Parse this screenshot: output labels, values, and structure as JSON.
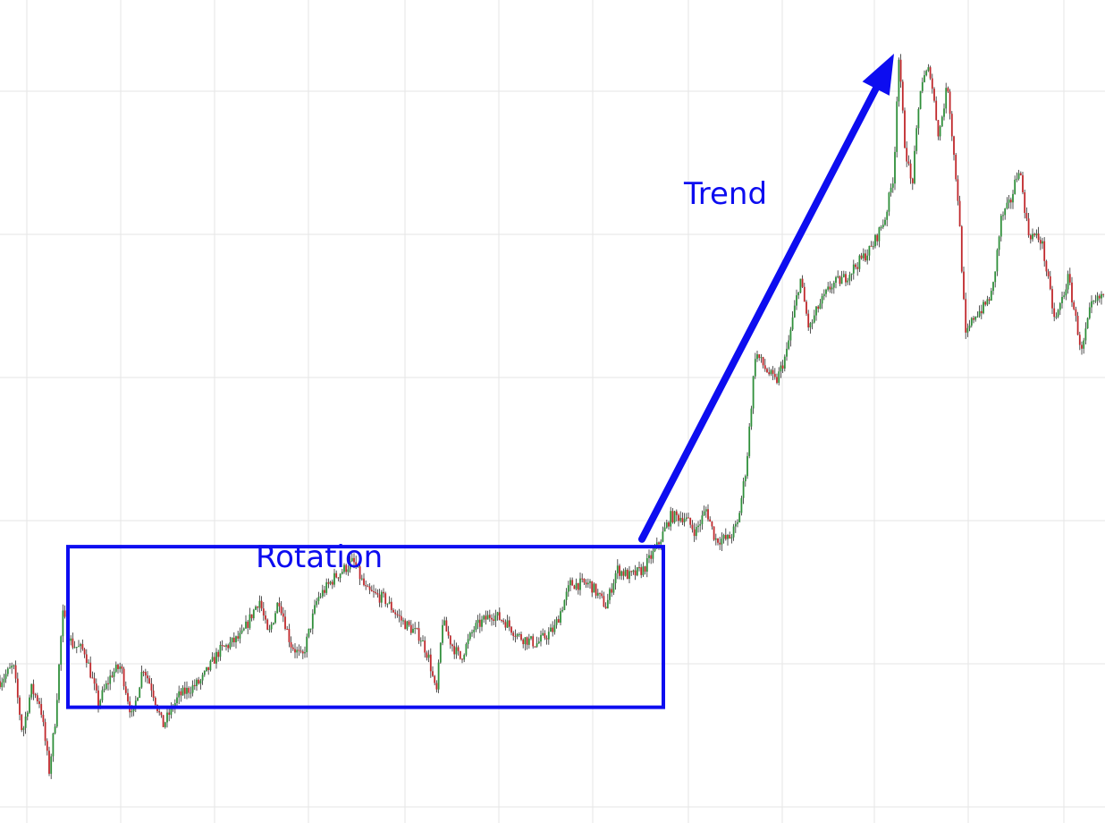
{
  "chart_data": {
    "type": "candlestick",
    "ylim": [
      0,
      100
    ],
    "xlim": [
      0,
      1236
    ],
    "grid": true,
    "colors": {
      "up": "#2f8f3a",
      "down": "#c0282c",
      "annotation": "#0d0df0",
      "grid": "#e6e6e6"
    },
    "price_path": [
      [
        0,
        16
      ],
      [
        15,
        18
      ],
      [
        25,
        9
      ],
      [
        35,
        15
      ],
      [
        45,
        13
      ],
      [
        55,
        4
      ],
      [
        62,
        11
      ],
      [
        70,
        25
      ],
      [
        80,
        21
      ],
      [
        95,
        20
      ],
      [
        110,
        13
      ],
      [
        125,
        17
      ],
      [
        135,
        18
      ],
      [
        148,
        11
      ],
      [
        160,
        18
      ],
      [
        170,
        15
      ],
      [
        182,
        10
      ],
      [
        200,
        14
      ],
      [
        225,
        16
      ],
      [
        245,
        20
      ],
      [
        270,
        22
      ],
      [
        290,
        27
      ],
      [
        300,
        22
      ],
      [
        312,
        27
      ],
      [
        325,
        21
      ],
      [
        338,
        19
      ],
      [
        355,
        27
      ],
      [
        375,
        30
      ],
      [
        395,
        32
      ],
      [
        410,
        28
      ],
      [
        430,
        27
      ],
      [
        450,
        24
      ],
      [
        470,
        22
      ],
      [
        480,
        19
      ],
      [
        488,
        14
      ],
      [
        495,
        24
      ],
      [
        505,
        21
      ],
      [
        515,
        19
      ],
      [
        530,
        23
      ],
      [
        550,
        25
      ],
      [
        565,
        24
      ],
      [
        580,
        22
      ],
      [
        600,
        21
      ],
      [
        620,
        23
      ],
      [
        638,
        29
      ],
      [
        660,
        29
      ],
      [
        678,
        26
      ],
      [
        690,
        31
      ],
      [
        705,
        30
      ],
      [
        720,
        31
      ],
      [
        735,
        34
      ],
      [
        750,
        38
      ],
      [
        765,
        38
      ],
      [
        778,
        36
      ],
      [
        790,
        39
      ],
      [
        800,
        35
      ],
      [
        815,
        35
      ],
      [
        825,
        37
      ],
      [
        835,
        45
      ],
      [
        845,
        60
      ],
      [
        855,
        58
      ],
      [
        868,
        56
      ],
      [
        880,
        60
      ],
      [
        895,
        70
      ],
      [
        905,
        63
      ],
      [
        915,
        66
      ],
      [
        930,
        69
      ],
      [
        945,
        70
      ],
      [
        960,
        72
      ],
      [
        975,
        74
      ],
      [
        990,
        78
      ],
      [
        1000,
        84
      ],
      [
        1005,
        100
      ],
      [
        1012,
        88
      ],
      [
        1020,
        82
      ],
      [
        1030,
        96
      ],
      [
        1040,
        98
      ],
      [
        1050,
        89
      ],
      [
        1060,
        96
      ],
      [
        1068,
        85
      ],
      [
        1072,
        80
      ],
      [
        1080,
        62
      ],
      [
        1090,
        65
      ],
      [
        1100,
        66
      ],
      [
        1110,
        68
      ],
      [
        1120,
        78
      ],
      [
        1130,
        80
      ],
      [
        1140,
        85
      ],
      [
        1150,
        76
      ],
      [
        1165,
        75
      ],
      [
        1180,
        64
      ],
      [
        1195,
        70
      ],
      [
        1210,
        60
      ],
      [
        1220,
        66
      ],
      [
        1236,
        68
      ]
    ],
    "annotations": [
      {
        "kind": "box",
        "label": "Rotation",
        "x0": 76,
        "x1": 742,
        "y0": 12.5,
        "y1": 34
      },
      {
        "kind": "arrow",
        "label": "Trend",
        "x0": 718,
        "y0": 35,
        "x1": 1000,
        "y1": 100
      }
    ]
  }
}
